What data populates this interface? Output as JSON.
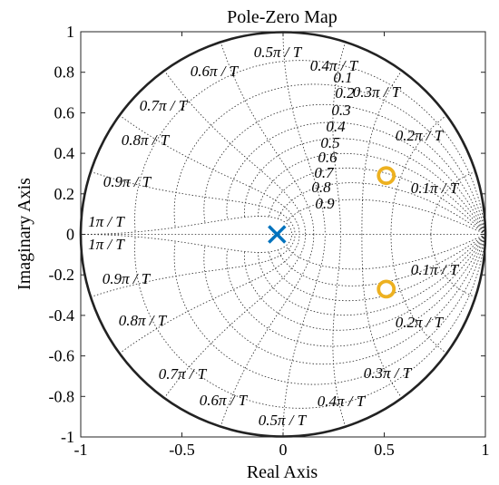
{
  "chart_data": {
    "type": "scatter",
    "title": "Pole-Zero Map",
    "xlabel": "Real Axis",
    "ylabel": "Imaginary Axis",
    "xlim": [
      -1,
      1
    ],
    "ylim": [
      -1,
      1
    ],
    "x_ticks": [
      "-1",
      "-0.5",
      "0",
      "0.5",
      "1"
    ],
    "y_ticks": [
      "1",
      "0.8",
      "0.6",
      "0.4",
      "0.2",
      "0",
      "-0.2",
      "-0.4",
      "-0.6",
      "-0.8",
      "-1"
    ],
    "grid": true,
    "damping_ratios": [
      0.1,
      0.2,
      0.3,
      0.4,
      0.5,
      0.6,
      0.7,
      0.8,
      0.9
    ],
    "natural_frequencies": [
      0.1,
      0.2,
      0.3,
      0.4,
      0.5,
      0.6,
      0.7,
      0.8,
      0.9,
      1
    ],
    "damping_labels": [
      "0.1",
      "0.2",
      "0.3",
      "0.4",
      "0.5",
      "0.6",
      "0.7",
      "0.8",
      "0.9"
    ],
    "frequency_labels_upper": [
      "0.1π / T",
      "0.2π / T",
      "0.3π / T",
      "0.4π / T",
      "0.5π / T",
      "0.6π / T",
      "0.7π / T",
      "0.8π / T",
      "0.9π / T",
      "1π / T"
    ],
    "frequency_labels_lower": [
      "0.1π / T",
      "0.2π / T",
      "0.3π / T",
      "0.4π / T",
      "0.5π / T",
      "0.6π / T",
      "0.7π / T",
      "0.8π / T",
      "0.9π / T",
      "1π / T"
    ],
    "poles": [
      {
        "real": -0.03,
        "imag": 0.0
      }
    ],
    "zeros": [
      {
        "real": 0.51,
        "imag": 0.29
      },
      {
        "real": 0.51,
        "imag": -0.27
      }
    ],
    "colors": {
      "pole": "#0072BD",
      "zero": "#EDB120",
      "unit_circle": "#222222",
      "grid": "#262626"
    }
  }
}
